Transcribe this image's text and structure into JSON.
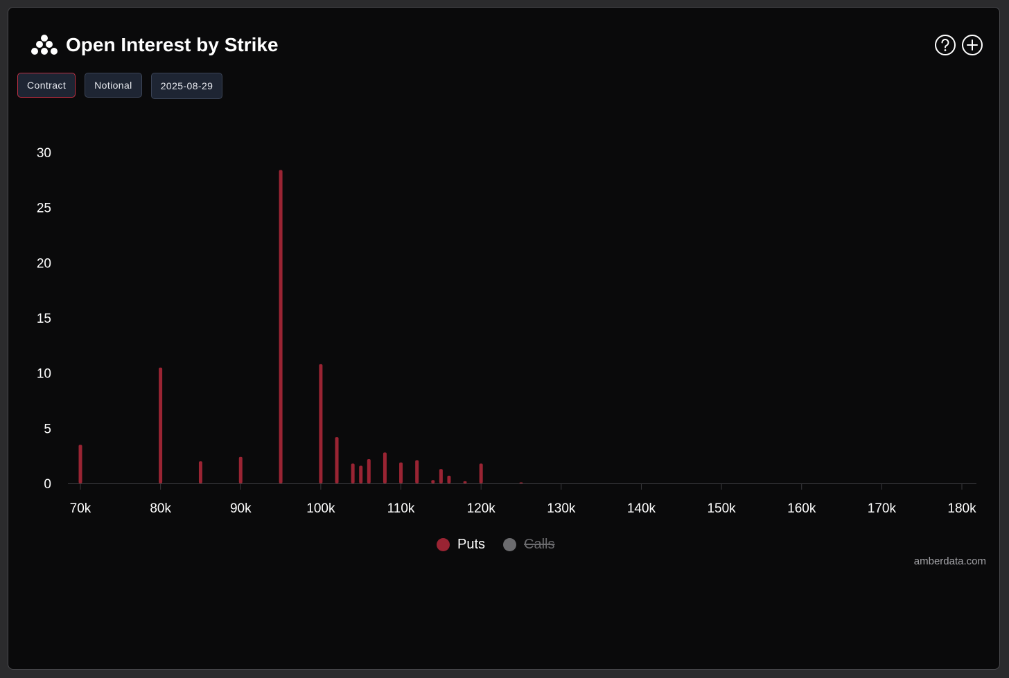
{
  "header": {
    "title": "Open Interest by Strike",
    "logo_icon": "amberdata-logo-icon"
  },
  "toolbar": {
    "contract_label": "Contract",
    "notional_label": "Notional",
    "date_label": "2025-08-29"
  },
  "top_icons": {
    "help": "help-icon",
    "add": "add-icon"
  },
  "legend": {
    "puts_label": "Puts",
    "calls_label": "Calls"
  },
  "credit": "amberdata.com",
  "colors": {
    "puts": "#9a2433",
    "calls_disabled": "#6b6b6e",
    "background": "#0a0a0b",
    "accent_border": "#c03044"
  },
  "chart_data": {
    "type": "bar",
    "title": "Open Interest by Strike",
    "xlabel": "",
    "ylabel": "",
    "xlim": [
      70000,
      181000
    ],
    "ylim": [
      0,
      30
    ],
    "x_ticks": [
      {
        "value": 70000,
        "label": "70k"
      },
      {
        "value": 80000,
        "label": "80k"
      },
      {
        "value": 90000,
        "label": "90k"
      },
      {
        "value": 100000,
        "label": "100k"
      },
      {
        "value": 110000,
        "label": "110k"
      },
      {
        "value": 120000,
        "label": "120k"
      },
      {
        "value": 130000,
        "label": "130k"
      },
      {
        "value": 140000,
        "label": "140k"
      },
      {
        "value": 150000,
        "label": "150k"
      },
      {
        "value": 160000,
        "label": "160k"
      },
      {
        "value": 170000,
        "label": "170k"
      },
      {
        "value": 180000,
        "label": "180k"
      }
    ],
    "y_ticks": [
      {
        "value": 0,
        "label": "0"
      },
      {
        "value": 5,
        "label": "5"
      },
      {
        "value": 10,
        "label": "10"
      },
      {
        "value": 15,
        "label": "15"
      },
      {
        "value": 20,
        "label": "20"
      },
      {
        "value": 25,
        "label": "25"
      },
      {
        "value": 30,
        "label": "30"
      }
    ],
    "series": [
      {
        "name": "Puts",
        "visible": true,
        "points": [
          {
            "strike": 70000,
            "value": 3.5
          },
          {
            "strike": 80000,
            "value": 10.5
          },
          {
            "strike": 85000,
            "value": 2.0
          },
          {
            "strike": 90000,
            "value": 2.4
          },
          {
            "strike": 95000,
            "value": 28.4
          },
          {
            "strike": 100000,
            "value": 10.8
          },
          {
            "strike": 102000,
            "value": 4.2
          },
          {
            "strike": 104000,
            "value": 1.8
          },
          {
            "strike": 105000,
            "value": 1.6
          },
          {
            "strike": 106000,
            "value": 2.2
          },
          {
            "strike": 108000,
            "value": 2.8
          },
          {
            "strike": 110000,
            "value": 1.9
          },
          {
            "strike": 112000,
            "value": 2.1
          },
          {
            "strike": 114000,
            "value": 0.3
          },
          {
            "strike": 115000,
            "value": 1.3
          },
          {
            "strike": 116000,
            "value": 0.7
          },
          {
            "strike": 118000,
            "value": 0.2
          },
          {
            "strike": 120000,
            "value": 1.8
          },
          {
            "strike": 125000,
            "value": 0.05
          }
        ]
      },
      {
        "name": "Calls",
        "visible": false,
        "points": []
      }
    ]
  }
}
